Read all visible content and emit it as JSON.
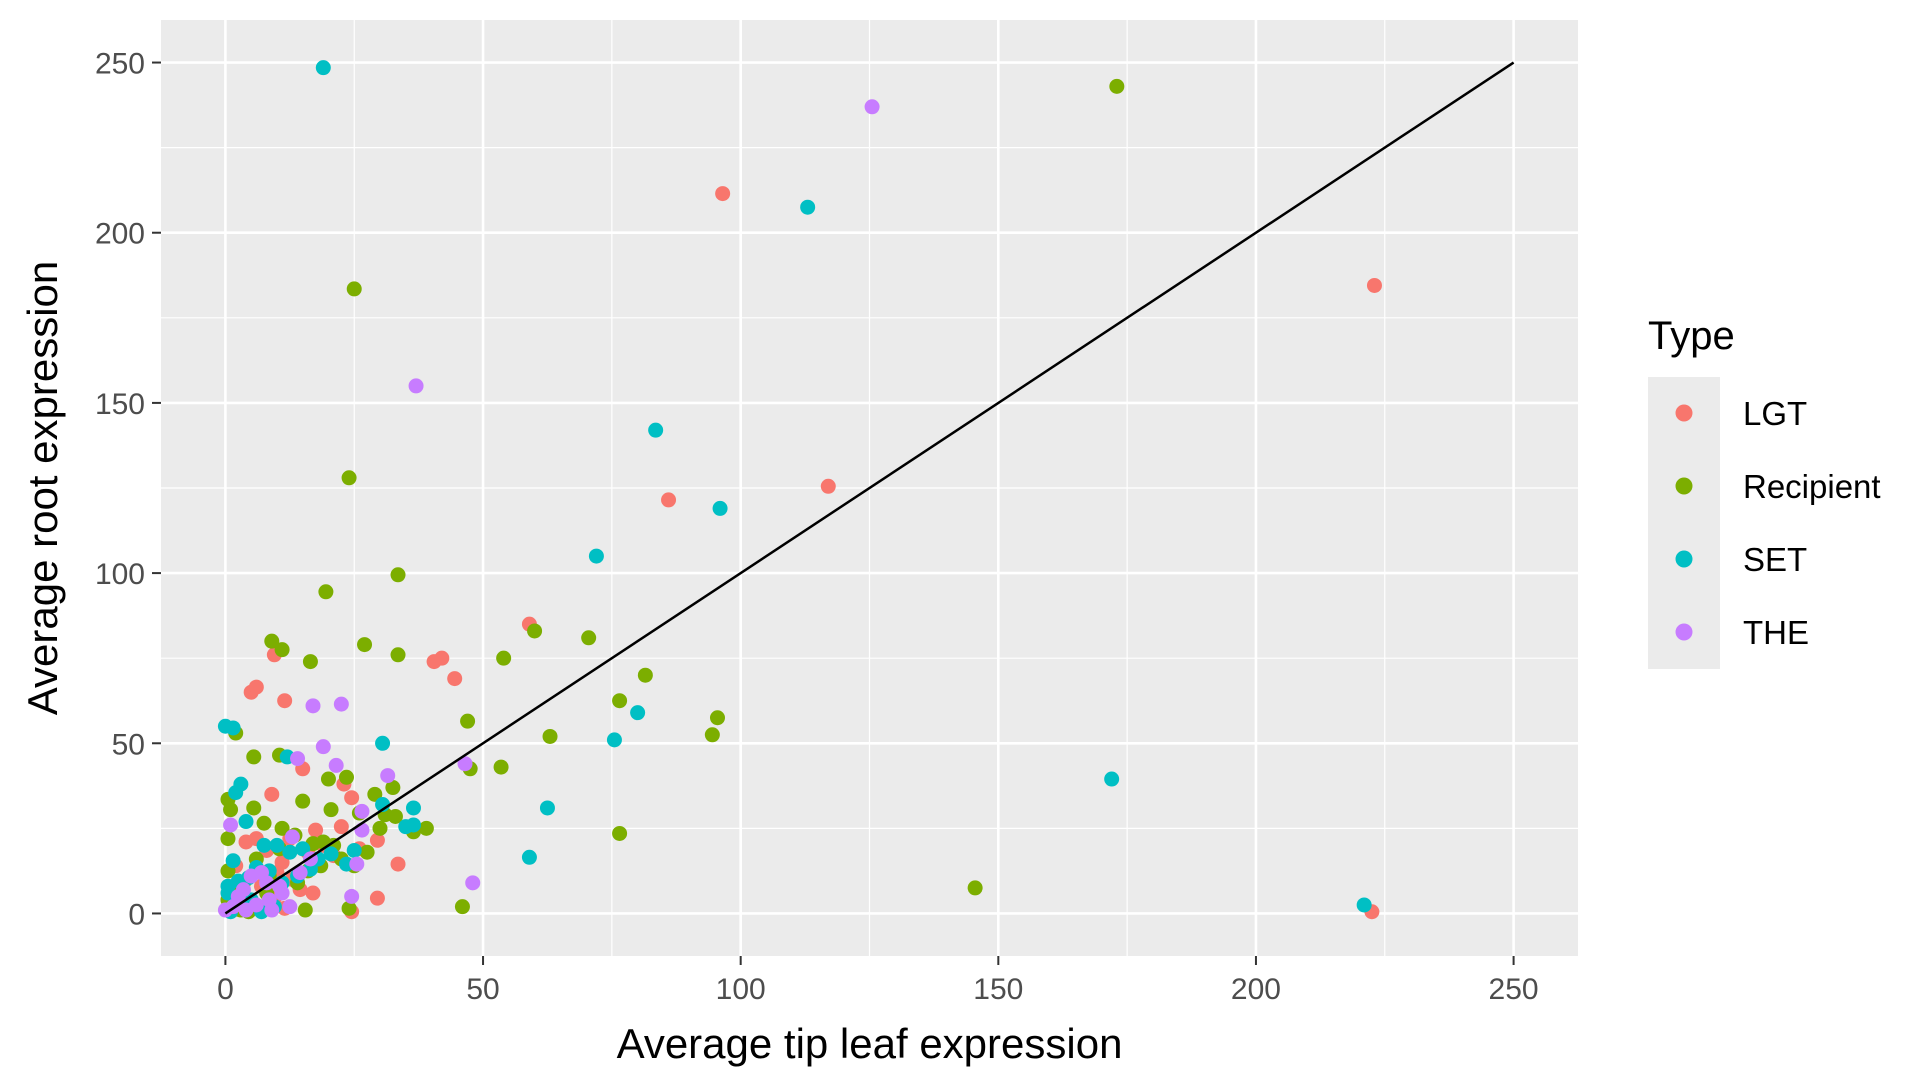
{
  "chart_data": {
    "type": "scatter",
    "xlabel": "Average tip leaf expression",
    "ylabel": "Average root expression",
    "xlim": [
      -12.5,
      262.5
    ],
    "ylim": [
      -12.5,
      262.5
    ],
    "x_ticks": [
      0,
      50,
      100,
      150,
      200,
      250
    ],
    "y_ticks": [
      0,
      50,
      100,
      150,
      200,
      250
    ],
    "x_tick_labels": [
      "0",
      "50",
      "100",
      "150",
      "200",
      "250"
    ],
    "y_tick_labels": [
      "0",
      "50",
      "100",
      "150",
      "200",
      "250"
    ],
    "grid": true,
    "panel_background": "#ebebeb",
    "legend": {
      "title": "Type",
      "placement": "right",
      "entries": [
        {
          "label": "LGT",
          "color": "#F8766D"
        },
        {
          "label": "Recipient",
          "color": "#7CAE00"
        },
        {
          "label": "SET",
          "color": "#00BFC4"
        },
        {
          "label": "THE",
          "color": "#C77CFF"
        }
      ]
    },
    "reference_line": {
      "type": "identity",
      "from": [
        0,
        0
      ],
      "to": [
        250,
        250
      ],
      "color": "#000000"
    },
    "series": [
      {
        "name": "LGT",
        "color": "#F8766D",
        "points": [
          [
            96.5,
            211.5
          ],
          [
            223,
            184.5
          ],
          [
            117,
            125.5
          ],
          [
            86,
            121.5
          ],
          [
            59,
            85
          ],
          [
            40.5,
            74
          ],
          [
            42,
            75
          ],
          [
            44.5,
            69
          ],
          [
            9.5,
            76
          ],
          [
            5,
            65
          ],
          [
            6,
            66.5
          ],
          [
            11.5,
            62.5
          ],
          [
            9,
            35
          ],
          [
            15,
            42.5
          ],
          [
            23,
            38
          ],
          [
            24.5,
            34
          ],
          [
            22.5,
            25.5
          ],
          [
            17.5,
            24.5
          ],
          [
            29.5,
            21.5
          ],
          [
            33.5,
            14.5
          ],
          [
            29.5,
            4.5
          ],
          [
            17,
            6
          ],
          [
            24.5,
            0.5
          ],
          [
            222.5,
            0.5
          ],
          [
            4,
            21
          ],
          [
            6,
            22
          ],
          [
            8,
            18.5
          ],
          [
            11,
            15
          ],
          [
            13,
            10
          ],
          [
            3,
            6
          ],
          [
            5,
            3
          ],
          [
            7,
            8
          ],
          [
            10,
            12
          ],
          [
            12.5,
            22
          ],
          [
            16,
            18
          ],
          [
            2,
            14
          ],
          [
            4.5,
            2
          ],
          [
            14.5,
            7
          ],
          [
            21,
            17
          ],
          [
            19,
            20
          ],
          [
            26,
            19
          ],
          [
            1.5,
            1
          ],
          [
            6.5,
            12.5
          ],
          [
            9.5,
            4.5
          ],
          [
            11.5,
            1.5
          ]
        ]
      },
      {
        "name": "Recipient",
        "color": "#7CAE00",
        "points": [
          [
            173,
            243
          ],
          [
            25,
            183.5
          ],
          [
            24,
            128
          ],
          [
            33.5,
            99.5
          ],
          [
            19.5,
            94.5
          ],
          [
            9,
            80
          ],
          [
            11,
            77.5
          ],
          [
            16.5,
            74
          ],
          [
            27,
            79
          ],
          [
            33.5,
            76
          ],
          [
            54,
            75
          ],
          [
            60,
            83
          ],
          [
            70.5,
            81
          ],
          [
            81.5,
            70
          ],
          [
            76.5,
            62.5
          ],
          [
            47,
            56.5
          ],
          [
            63,
            52
          ],
          [
            95.5,
            57.5
          ],
          [
            94.5,
            52.5
          ],
          [
            53.5,
            43
          ],
          [
            47.5,
            42.5
          ],
          [
            2,
            53
          ],
          [
            5.5,
            46
          ],
          [
            10.5,
            46.5
          ],
          [
            0.5,
            33.5
          ],
          [
            1,
            30.5
          ],
          [
            5.5,
            31
          ],
          [
            7.5,
            26.5
          ],
          [
            15,
            33
          ],
          [
            20,
            39.5
          ],
          [
            23.5,
            40
          ],
          [
            29,
            35
          ],
          [
            32.5,
            37
          ],
          [
            31,
            29
          ],
          [
            33,
            28.5
          ],
          [
            26,
            29.5
          ],
          [
            20.5,
            30.5
          ],
          [
            36.5,
            24
          ],
          [
            39,
            25
          ],
          [
            76.5,
            23.5
          ],
          [
            145.5,
            7.5
          ],
          [
            46,
            2
          ],
          [
            24,
            1.5
          ],
          [
            15.5,
            1
          ],
          [
            0.5,
            22
          ],
          [
            0.5,
            12.5
          ],
          [
            3,
            1
          ],
          [
            4.5,
            0.5
          ],
          [
            8,
            6
          ],
          [
            11,
            25
          ],
          [
            13.5,
            23
          ],
          [
            17,
            20.5
          ],
          [
            19,
            21
          ],
          [
            21,
            20
          ],
          [
            22.5,
            16
          ],
          [
            25,
            14
          ],
          [
            18.5,
            14
          ],
          [
            14,
            9
          ],
          [
            10.5,
            19
          ],
          [
            6,
            16
          ],
          [
            3.5,
            9
          ],
          [
            2,
            6
          ],
          [
            8.5,
            11
          ],
          [
            16,
            12.5
          ],
          [
            27.5,
            18
          ],
          [
            30,
            25
          ],
          [
            0.5,
            4
          ],
          [
            6.5,
            2
          ]
        ]
      },
      {
        "name": "SET",
        "color": "#00BFC4",
        "points": [
          [
            19,
            248.5
          ],
          [
            113,
            207.5
          ],
          [
            83.5,
            142
          ],
          [
            96,
            119
          ],
          [
            72,
            105
          ],
          [
            80,
            59
          ],
          [
            75.5,
            51
          ],
          [
            30.5,
            50
          ],
          [
            62.5,
            31
          ],
          [
            59,
            16.5
          ],
          [
            172,
            39.5
          ],
          [
            221,
            2.5
          ],
          [
            0,
            55
          ],
          [
            1.5,
            54.5
          ],
          [
            12,
            46
          ],
          [
            3,
            38
          ],
          [
            2,
            35.5
          ],
          [
            4,
            27
          ],
          [
            36.5,
            31
          ],
          [
            30.5,
            32
          ],
          [
            35,
            25.5
          ],
          [
            36.5,
            26
          ],
          [
            1.5,
            15.5
          ],
          [
            7.5,
            20
          ],
          [
            10,
            20
          ],
          [
            12.5,
            18
          ],
          [
            15,
            19
          ],
          [
            18,
            16
          ],
          [
            23.5,
            14.5
          ],
          [
            25,
            18.5
          ],
          [
            6,
            13.5
          ],
          [
            8.5,
            12.5
          ],
          [
            0.5,
            8
          ],
          [
            3,
            5
          ],
          [
            5,
            4
          ],
          [
            9.5,
            2
          ],
          [
            1,
            0.5
          ],
          [
            11,
            9
          ],
          [
            14,
            11
          ],
          [
            20.5,
            17.5
          ],
          [
            16.5,
            13
          ],
          [
            4.5,
            10.5
          ],
          [
            2.5,
            9.5
          ],
          [
            0.5,
            6
          ],
          [
            7,
            0.5
          ]
        ]
      },
      {
        "name": "THE",
        "color": "#C77CFF",
        "points": [
          [
            125.5,
            237
          ],
          [
            37,
            155
          ],
          [
            17,
            61
          ],
          [
            22.5,
            61.5
          ],
          [
            19,
            49
          ],
          [
            14,
            45.5
          ],
          [
            21.5,
            43.5
          ],
          [
            31.5,
            40.5
          ],
          [
            46.5,
            44
          ],
          [
            26.5,
            30
          ],
          [
            26.5,
            24.5
          ],
          [
            25.5,
            14.5
          ],
          [
            24.5,
            5
          ],
          [
            48,
            9
          ],
          [
            1,
            26
          ],
          [
            5,
            11
          ],
          [
            8,
            9
          ],
          [
            10.5,
            8
          ],
          [
            11,
            6
          ],
          [
            12.5,
            2
          ],
          [
            14.5,
            12
          ],
          [
            13,
            22.5
          ],
          [
            16.5,
            16
          ],
          [
            2.5,
            5
          ],
          [
            4,
            1
          ],
          [
            6,
            2.5
          ],
          [
            8.5,
            4
          ],
          [
            0,
            1
          ],
          [
            9,
            1
          ],
          [
            3.5,
            7
          ],
          [
            7,
            12
          ],
          [
            1.5,
            2
          ]
        ]
      }
    ]
  }
}
